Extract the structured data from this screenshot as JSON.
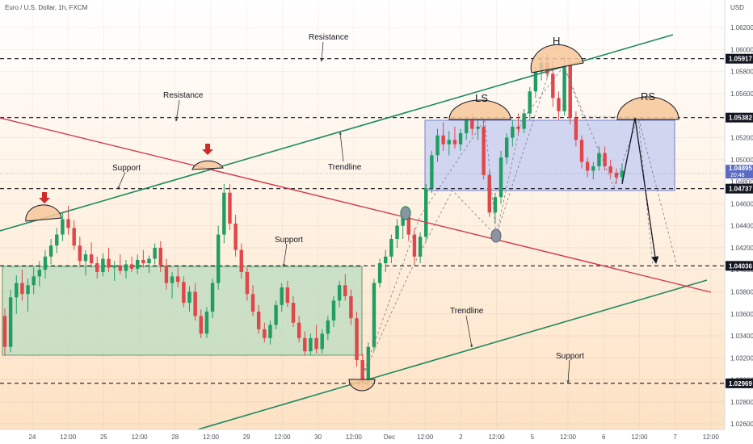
{
  "chart_data": {
    "type": "candlestick",
    "title": "Euro / U.S. Dollar, 1h, FXCM",
    "currency_label": "USD",
    "ylim": [
      1.0255,
      1.0645
    ],
    "x_ticks": [
      "24",
      "12:00",
      "25",
      "12:00",
      "28",
      "12:00",
      "29",
      "12:00",
      "30",
      "12:00",
      "Dec",
      "12:00",
      "2",
      "12:00",
      "5",
      "12:00",
      "6",
      "12:00",
      "7",
      "12:00"
    ],
    "y_ticks": [
      1.062,
      1.06,
      1.058,
      1.056,
      1.054,
      1.052,
      1.05,
      1.048,
      1.046,
      1.044,
      1.042,
      1.04,
      1.038,
      1.036,
      1.034,
      1.032,
      1.03,
      1.028,
      1.026
    ],
    "y_tick_labels": [
      "1.06200",
      "1.06000",
      "1.05800",
      "1.05600",
      "1.05400",
      "1.05200",
      "1.05000",
      "1.04800",
      "1.04600",
      "1.04400",
      "1.04200",
      "1.04000",
      "1.03800",
      "1.03600",
      "1.03400",
      "1.03200",
      "1.03000",
      "1.02800",
      "1.02600"
    ],
    "price_levels": [
      {
        "label": "1.05917",
        "value": 1.05917,
        "color": "#131722"
      },
      {
        "label": "1.05382",
        "value": 1.05382,
        "color": "#131722"
      },
      {
        "label": "1.04737",
        "value": 1.04737,
        "color": "#131722"
      },
      {
        "label": "1.04036",
        "value": 1.04036,
        "color": "#131722"
      },
      {
        "label": "1.02969",
        "value": 1.02969,
        "color": "#131722"
      }
    ],
    "current_price": {
      "label": "1.04895",
      "countdown": "20:48",
      "value": 1.04895
    },
    "annotations": {
      "resistance_top": "Resistance",
      "resistance_left": "Resistance",
      "support_left": "Support",
      "trendline_mid": "Trendline",
      "support_mid": "Support",
      "trendline_low": "Trendline",
      "support_low": "Support",
      "head": "H",
      "left_shoulder": "LS",
      "right_shoulder": "RS"
    },
    "zones": [
      {
        "name": "support-zone",
        "y_range": [
          1.0324,
          1.04036
        ],
        "color": "#b9dcc0"
      },
      {
        "name": "resistance-zone",
        "y_range": [
          1.04737,
          1.05382
        ],
        "color": "#c5cdf0"
      }
    ],
    "trend_lines": [
      {
        "name": "upper-channel-line",
        "color": "#1e8a60"
      },
      {
        "name": "lower-channel-line",
        "color": "#1e8a60"
      },
      {
        "name": "descending-trendline",
        "color": "#d1394c"
      }
    ],
    "candles": [
      [
        1.0358,
        1.0365,
        1.0322,
        1.033
      ],
      [
        1.033,
        1.0382,
        1.0325,
        1.0375
      ],
      [
        1.0375,
        1.0395,
        1.036,
        1.0388
      ],
      [
        1.0388,
        1.04,
        1.0372,
        1.0378
      ],
      [
        1.0378,
        1.0392,
        1.0362,
        1.0386
      ],
      [
        1.0386,
        1.0402,
        1.0378,
        1.0394
      ],
      [
        1.0394,
        1.0408,
        1.0385,
        1.04
      ],
      [
        1.04,
        1.0418,
        1.0392,
        1.0412
      ],
      [
        1.0412,
        1.0428,
        1.0405,
        1.0422
      ],
      [
        1.0422,
        1.0438,
        1.0415,
        1.0432
      ],
      [
        1.0432,
        1.0452,
        1.0426,
        1.0446
      ],
      [
        1.0446,
        1.0458,
        1.0432,
        1.0438
      ],
      [
        1.0438,
        1.0445,
        1.0418,
        1.0422
      ],
      [
        1.0422,
        1.043,
        1.0404,
        1.0408
      ],
      [
        1.0408,
        1.0418,
        1.0395,
        1.0414
      ],
      [
        1.0414,
        1.0425,
        1.0402,
        1.0406
      ],
      [
        1.0406,
        1.0412,
        1.0392,
        1.0398
      ],
      [
        1.0398,
        1.0415,
        1.0394,
        1.041
      ],
      [
        1.041,
        1.042,
        1.0398,
        1.0402
      ],
      [
        1.0402,
        1.0408,
        1.039,
        1.0404
      ],
      [
        1.0404,
        1.0414,
        1.0396,
        1.0399
      ],
      [
        1.0399,
        1.0409,
        1.0392,
        1.0405
      ],
      [
        1.0405,
        1.0412,
        1.0398,
        1.0401
      ],
      [
        1.0401,
        1.0414,
        1.0396,
        1.0409
      ],
      [
        1.0409,
        1.0418,
        1.0402,
        1.0406
      ],
      [
        1.0406,
        1.0413,
        1.0397,
        1.041
      ],
      [
        1.041,
        1.0424,
        1.0405,
        1.042
      ],
      [
        1.042,
        1.0426,
        1.0398,
        1.0404
      ],
      [
        1.0404,
        1.041,
        1.0382,
        1.0388
      ],
      [
        1.0388,
        1.0398,
        1.0374,
        1.0394
      ],
      [
        1.0394,
        1.0402,
        1.0384,
        1.0389
      ],
      [
        1.0389,
        1.0394,
        1.0366,
        1.037
      ],
      [
        1.037,
        1.0385,
        1.0362,
        1.038
      ],
      [
        1.038,
        1.0388,
        1.0354,
        1.0358
      ],
      [
        1.0358,
        1.0364,
        1.0338,
        1.0342
      ],
      [
        1.0342,
        1.0366,
        1.0338,
        1.0362
      ],
      [
        1.0362,
        1.0392,
        1.0356,
        1.0388
      ],
      [
        1.0388,
        1.044,
        1.0382,
        1.0432
      ],
      [
        1.0432,
        1.0478,
        1.0424,
        1.047
      ],
      [
        1.047,
        1.0478,
        1.0436,
        1.0442
      ],
      [
        1.0442,
        1.045,
        1.0412,
        1.0418
      ],
      [
        1.0418,
        1.0424,
        1.0392,
        1.0398
      ],
      [
        1.0398,
        1.0402,
        1.0372,
        1.0378
      ],
      [
        1.0378,
        1.0386,
        1.0358,
        1.0362
      ],
      [
        1.0362,
        1.0368,
        1.0342,
        1.0346
      ],
      [
        1.0346,
        1.0352,
        1.0334,
        1.0338
      ],
      [
        1.0338,
        1.0354,
        1.0332,
        1.035
      ],
      [
        1.035,
        1.0372,
        1.0346,
        1.0368
      ],
      [
        1.0368,
        1.0388,
        1.0362,
        1.0384
      ],
      [
        1.0384,
        1.039,
        1.0366,
        1.037
      ],
      [
        1.037,
        1.0376,
        1.0348,
        1.0352
      ],
      [
        1.0352,
        1.0358,
        1.0334,
        1.0338
      ],
      [
        1.0338,
        1.0344,
        1.0322,
        1.0326
      ],
      [
        1.0326,
        1.0342,
        1.0322,
        1.0338
      ],
      [
        1.0338,
        1.035,
        1.0324,
        1.0328
      ],
      [
        1.0328,
        1.0346,
        1.0324,
        1.0342
      ],
      [
        1.0342,
        1.0358,
        1.0336,
        1.0354
      ],
      [
        1.0354,
        1.0376,
        1.0348,
        1.0372
      ],
      [
        1.0372,
        1.039,
        1.0366,
        1.0386
      ],
      [
        1.0386,
        1.0396,
        1.0372,
        1.0376
      ],
      [
        1.0376,
        1.0382,
        1.035,
        1.0356
      ],
      [
        1.0356,
        1.0362,
        1.0312,
        1.0318
      ],
      [
        1.0318,
        1.0324,
        1.0294,
        1.0298
      ],
      [
        1.0298,
        1.0334,
        1.0292,
        1.033
      ],
      [
        1.033,
        1.0392,
        1.0326,
        1.0388
      ],
      [
        1.0388,
        1.041,
        1.0384,
        1.0406
      ],
      [
        1.0406,
        1.0418,
        1.0398,
        1.0412
      ],
      [
        1.0412,
        1.0432,
        1.0406,
        1.0428
      ],
      [
        1.0428,
        1.0446,
        1.042,
        1.044
      ],
      [
        1.044,
        1.0454,
        1.0428,
        1.0448
      ],
      [
        1.0448,
        1.0452,
        1.0426,
        1.0432
      ],
      [
        1.0432,
        1.0438,
        1.0404,
        1.0412
      ],
      [
        1.0412,
        1.0434,
        1.0406,
        1.043
      ],
      [
        1.043,
        1.0478,
        1.0426,
        1.0474
      ],
      [
        1.0474,
        1.0508,
        1.047,
        1.0504
      ],
      [
        1.0504,
        1.0528,
        1.0498,
        1.0522
      ],
      [
        1.0522,
        1.0534,
        1.0508,
        1.0514
      ],
      [
        1.0514,
        1.0526,
        1.0504,
        1.0518
      ],
      [
        1.0518,
        1.053,
        1.051,
        1.0514
      ],
      [
        1.0514,
        1.0528,
        1.0508,
        1.0524
      ],
      [
        1.0524,
        1.054,
        1.0518,
        1.0536
      ],
      [
        1.0536,
        1.0542,
        1.0522,
        1.0528
      ],
      [
        1.0528,
        1.0538,
        1.0518,
        1.053
      ],
      [
        1.053,
        1.0536,
        1.0482,
        1.0486
      ],
      [
        1.0486,
        1.049,
        1.0448,
        1.0452
      ],
      [
        1.0452,
        1.047,
        1.0442,
        1.0466
      ],
      [
        1.0466,
        1.0508,
        1.046,
        1.0502
      ],
      [
        1.0502,
        1.0524,
        1.0496,
        1.052
      ],
      [
        1.052,
        1.0536,
        1.0512,
        1.053
      ],
      [
        1.053,
        1.0542,
        1.0522,
        1.0528
      ],
      [
        1.0528,
        1.0546,
        1.0524,
        1.0542
      ],
      [
        1.0542,
        1.0566,
        1.0536,
        1.0562
      ],
      [
        1.0562,
        1.0584,
        1.0556,
        1.058
      ],
      [
        1.058,
        1.0594,
        1.0572,
        1.0588
      ],
      [
        1.0588,
        1.0596,
        1.0574,
        1.0578
      ],
      [
        1.0578,
        1.059,
        1.0548,
        1.0556
      ],
      [
        1.0556,
        1.0562,
        1.0536,
        1.0544
      ],
      [
        1.0544,
        1.0594,
        1.054,
        1.0586
      ],
      [
        1.0586,
        1.0592,
        1.0532,
        1.0538
      ],
      [
        1.0538,
        1.0544,
        1.0512,
        1.0518
      ],
      [
        1.0518,
        1.0522,
        1.0492,
        1.0498
      ],
      [
        1.0498,
        1.0502,
        1.0484,
        1.049
      ],
      [
        1.049,
        1.0498,
        1.0482,
        1.0494
      ],
      [
        1.0494,
        1.0512,
        1.049,
        1.0506
      ],
      [
        1.0506,
        1.0512,
        1.049,
        1.0494
      ],
      [
        1.0494,
        1.05,
        1.0484,
        1.0488
      ],
      [
        1.0488,
        1.0492,
        1.0478,
        1.0484
      ],
      [
        1.0484,
        1.0496,
        1.048,
        1.049
      ]
    ]
  }
}
